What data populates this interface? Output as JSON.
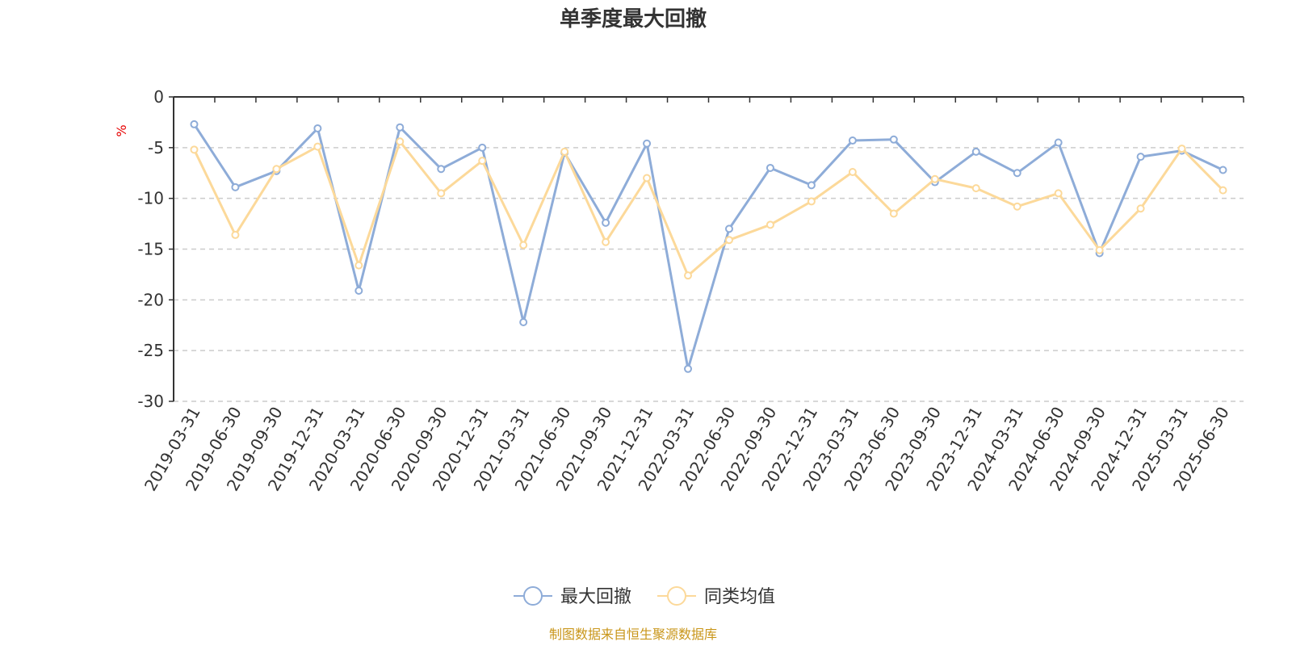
{
  "chart_data": {
    "type": "line",
    "title": "单季度最大回撤",
    "ylabel": "%",
    "ylim": [
      -30,
      0
    ],
    "yticks": [
      0,
      -5,
      -10,
      -15,
      -20,
      -25,
      -30
    ],
    "grid": true,
    "legend_position": "bottom-center",
    "categories": [
      "2019-03-31",
      "2019-06-30",
      "2019-09-30",
      "2019-12-31",
      "2020-03-31",
      "2020-06-30",
      "2020-09-30",
      "2020-12-31",
      "2021-03-31",
      "2021-06-30",
      "2021-09-30",
      "2021-12-31",
      "2022-03-31",
      "2022-06-30",
      "2022-09-30",
      "2022-12-31",
      "2023-03-31",
      "2023-06-30",
      "2023-09-30",
      "2023-12-31",
      "2024-03-31",
      "2024-06-30",
      "2024-09-30",
      "2024-12-31",
      "2025-03-31",
      "2025-06-30"
    ],
    "series": [
      {
        "name": "最大回撤",
        "color": "#8eacd8",
        "values": [
          -2.7,
          -8.9,
          -7.3,
          -3.1,
          -19.1,
          -3.0,
          -7.1,
          -5.0,
          -22.2,
          -5.5,
          -12.4,
          -4.6,
          -26.8,
          -13.0,
          -7.0,
          -8.7,
          -4.3,
          -4.2,
          -8.4,
          -5.4,
          -7.5,
          -4.5,
          -15.4,
          -5.9,
          -5.3,
          -7.2
        ]
      },
      {
        "name": "同类均值",
        "color": "#fcd99a",
        "values": [
          -5.2,
          -13.6,
          -7.1,
          -4.9,
          -16.6,
          -4.4,
          -9.5,
          -6.3,
          -14.6,
          -5.4,
          -14.3,
          -8.0,
          -17.6,
          -14.1,
          -12.6,
          -10.3,
          -7.4,
          -11.5,
          -8.1,
          -9.0,
          -10.8,
          -9.5,
          -15.1,
          -11.0,
          -5.1,
          -9.2
        ]
      }
    ]
  },
  "source_note": "制图数据来自恒生聚源数据库"
}
